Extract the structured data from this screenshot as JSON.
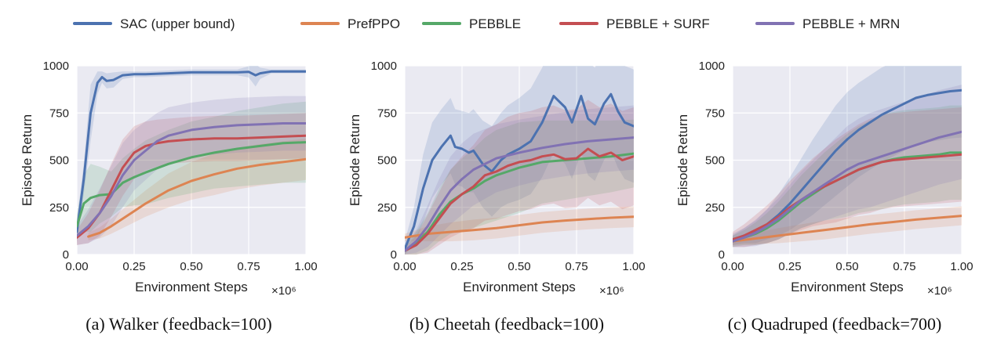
{
  "legend": [
    {
      "name": "SAC (upper bound)",
      "color": "#4c72b0"
    },
    {
      "name": "PrefPPO",
      "color": "#dd8452"
    },
    {
      "name": "PEBBLE",
      "color": "#55a868"
    },
    {
      "name": "PEBBLE + SURF",
      "color": "#c44e52"
    },
    {
      "name": "PEBBLE + MRN",
      "color": "#8172b3"
    }
  ],
  "chart_data": [
    {
      "type": "line",
      "title": "",
      "caption": "(a) Walker (feedback=100)",
      "xlabel": "Environment Steps",
      "ylabel": "Episode Return",
      "x_multiplier": "×10⁶",
      "xlim": [
        0,
        1.0
      ],
      "ylim": [
        0,
        1000
      ],
      "xticks": [
        "0.00",
        "0.25",
        "0.50",
        "0.75",
        "1.00"
      ],
      "yticks": [
        "0",
        "250",
        "500",
        "750",
        "1000"
      ],
      "grid": true,
      "series": [
        {
          "name": "SAC (upper bound)",
          "x": [
            0,
            0.03,
            0.06,
            0.09,
            0.11,
            0.13,
            0.16,
            0.2,
            0.25,
            0.3,
            0.4,
            0.5,
            0.6,
            0.7,
            0.75,
            0.78,
            0.8,
            0.85,
            0.9,
            1.0
          ],
          "y": [
            120,
            400,
            750,
            910,
            940,
            920,
            925,
            950,
            955,
            955,
            960,
            965,
            965,
            965,
            968,
            950,
            960,
            970,
            970,
            970
          ],
          "band": [
            60,
            80,
            150,
            60,
            30,
            40,
            40,
            20,
            15,
            15,
            15,
            15,
            15,
            15,
            30,
            60,
            30,
            10,
            10,
            10
          ]
        },
        {
          "name": "PrefPPO",
          "x": [
            0.05,
            0.1,
            0.15,
            0.2,
            0.25,
            0.3,
            0.4,
            0.5,
            0.6,
            0.7,
            0.8,
            0.9,
            1.0
          ],
          "y": [
            95,
            115,
            150,
            190,
            230,
            270,
            340,
            390,
            425,
            455,
            475,
            490,
            505
          ],
          "band": [
            20,
            30,
            40,
            50,
            60,
            70,
            90,
            100,
            110,
            110,
            110,
            110,
            110
          ]
        },
        {
          "name": "PEBBLE",
          "x": [
            0,
            0.03,
            0.06,
            0.1,
            0.15,
            0.2,
            0.25,
            0.3,
            0.4,
            0.5,
            0.6,
            0.7,
            0.8,
            0.9,
            1.0
          ],
          "y": [
            150,
            270,
            300,
            315,
            320,
            380,
            410,
            435,
            480,
            515,
            540,
            560,
            575,
            590,
            595
          ],
          "band": [
            60,
            150,
            180,
            150,
            120,
            130,
            150,
            170,
            180,
            190,
            190,
            200,
            205,
            210,
            215
          ]
        },
        {
          "name": "PEBBLE + SURF",
          "x": [
            0,
            0.05,
            0.1,
            0.15,
            0.2,
            0.25,
            0.3,
            0.35,
            0.4,
            0.5,
            0.6,
            0.7,
            0.8,
            0.9,
            1.0
          ],
          "y": [
            90,
            140,
            220,
            340,
            460,
            540,
            575,
            590,
            600,
            610,
            615,
            615,
            620,
            625,
            630
          ],
          "band": [
            40,
            80,
            120,
            140,
            150,
            140,
            130,
            125,
            120,
            120,
            120,
            120,
            120,
            120,
            120
          ]
        },
        {
          "name": "PEBBLE + MRN",
          "x": [
            0,
            0.05,
            0.1,
            0.15,
            0.2,
            0.25,
            0.3,
            0.35,
            0.4,
            0.5,
            0.6,
            0.7,
            0.8,
            0.9,
            1.0
          ],
          "y": [
            100,
            150,
            220,
            310,
            420,
            500,
            550,
            600,
            630,
            660,
            675,
            685,
            690,
            695,
            695
          ],
          "band": [
            50,
            90,
            130,
            160,
            170,
            160,
            155,
            150,
            150,
            145,
            145,
            145,
            145,
            145,
            145
          ]
        }
      ]
    },
    {
      "type": "line",
      "title": "",
      "caption": "(b) Cheetah (feedback=100)",
      "xlabel": "Environment Steps",
      "ylabel": "Episode Return",
      "x_multiplier": "×10⁶",
      "xlim": [
        0,
        1.0
      ],
      "ylim": [
        0,
        1000
      ],
      "xticks": [
        "0.00",
        "0.25",
        "0.50",
        "0.75",
        "1.00"
      ],
      "yticks": [
        "0",
        "250",
        "500",
        "750",
        "1000"
      ],
      "grid": true,
      "series": [
        {
          "name": "SAC (upper bound)",
          "x": [
            0,
            0.04,
            0.08,
            0.12,
            0.16,
            0.2,
            0.22,
            0.25,
            0.28,
            0.3,
            0.34,
            0.38,
            0.42,
            0.45,
            0.5,
            0.55,
            0.6,
            0.65,
            0.7,
            0.73,
            0.77,
            0.8,
            0.83,
            0.87,
            0.9,
            0.93,
            0.96,
            1.0
          ],
          "y": [
            30,
            150,
            350,
            500,
            570,
            630,
            570,
            560,
            540,
            550,
            480,
            440,
            500,
            530,
            560,
            600,
            700,
            840,
            780,
            700,
            840,
            720,
            690,
            800,
            850,
            760,
            700,
            680
          ],
          "band": [
            40,
            100,
            180,
            200,
            200,
            200,
            200,
            200,
            210,
            220,
            230,
            240,
            250,
            260,
            270,
            280,
            290,
            300,
            300,
            300,
            300,
            300,
            300,
            300,
            300,
            300,
            300,
            300
          ]
        },
        {
          "name": "PrefPPO",
          "x": [
            0,
            0.05,
            0.1,
            0.2,
            0.3,
            0.4,
            0.5,
            0.6,
            0.7,
            0.8,
            0.9,
            1.0
          ],
          "y": [
            90,
            100,
            110,
            120,
            130,
            140,
            155,
            170,
            180,
            188,
            195,
            200
          ],
          "band": [
            20,
            30,
            40,
            50,
            55,
            55,
            55,
            55,
            55,
            55,
            55,
            55
          ]
        },
        {
          "name": "PEBBLE",
          "x": [
            0,
            0.05,
            0.1,
            0.15,
            0.2,
            0.25,
            0.3,
            0.35,
            0.4,
            0.45,
            0.5,
            0.55,
            0.6,
            0.7,
            0.8,
            0.9,
            1.0
          ],
          "y": [
            20,
            60,
            120,
            210,
            280,
            320,
            350,
            390,
            420,
            440,
            460,
            475,
            490,
            500,
            510,
            520,
            535
          ],
          "band": [
            20,
            60,
            100,
            140,
            170,
            190,
            210,
            230,
            240,
            240,
            240,
            230,
            220,
            210,
            200,
            190,
            180
          ]
        },
        {
          "name": "PEBBLE + SURF",
          "x": [
            0,
            0.05,
            0.1,
            0.15,
            0.2,
            0.25,
            0.3,
            0.35,
            0.4,
            0.45,
            0.5,
            0.55,
            0.6,
            0.65,
            0.7,
            0.75,
            0.8,
            0.85,
            0.9,
            0.95,
            1.0
          ],
          "y": [
            20,
            50,
            110,
            190,
            270,
            320,
            360,
            420,
            440,
            470,
            490,
            500,
            520,
            530,
            505,
            510,
            560,
            520,
            540,
            500,
            520
          ],
          "band": [
            20,
            50,
            100,
            140,
            180,
            200,
            220,
            240,
            250,
            260,
            260,
            260,
            260,
            260,
            260,
            260,
            260,
            260,
            260,
            260,
            260
          ]
        },
        {
          "name": "PEBBLE + MRN",
          "x": [
            0,
            0.05,
            0.1,
            0.15,
            0.2,
            0.25,
            0.3,
            0.35,
            0.4,
            0.5,
            0.6,
            0.7,
            0.8,
            0.9,
            1.0
          ],
          "y": [
            20,
            70,
            150,
            250,
            340,
            400,
            450,
            480,
            510,
            540,
            565,
            585,
            600,
            610,
            620
          ],
          "band": [
            20,
            60,
            110,
            150,
            180,
            190,
            190,
            185,
            180,
            175,
            170,
            170,
            170,
            170,
            170
          ]
        }
      ]
    },
    {
      "type": "line",
      "title": "",
      "caption": "(c) Quadruped (feedback=700)",
      "xlabel": "Environment Steps",
      "ylabel": "Episode Return",
      "x_multiplier": "×10⁶",
      "xlim": [
        0,
        1.0
      ],
      "ylim": [
        0,
        1000
      ],
      "xticks": [
        "0.00",
        "0.25",
        "0.50",
        "0.75",
        "1.00"
      ],
      "yticks": [
        "0",
        "250",
        "500",
        "750",
        "1000"
      ],
      "grid": true,
      "series": [
        {
          "name": "SAC (upper bound)",
          "x": [
            0,
            0.05,
            0.1,
            0.15,
            0.2,
            0.25,
            0.3,
            0.35,
            0.4,
            0.45,
            0.5,
            0.55,
            0.6,
            0.65,
            0.7,
            0.75,
            0.8,
            0.85,
            0.9,
            0.95,
            1.0
          ],
          "y": [
            80,
            100,
            120,
            160,
            210,
            270,
            340,
            410,
            480,
            550,
            610,
            660,
            700,
            740,
            770,
            800,
            830,
            845,
            855,
            865,
            870
          ],
          "band": [
            30,
            40,
            60,
            80,
            110,
            140,
            170,
            200,
            220,
            240,
            250,
            250,
            250,
            250,
            250,
            250,
            250,
            250,
            250,
            250,
            250
          ]
        },
        {
          "name": "PrefPPO",
          "x": [
            0,
            0.1,
            0.2,
            0.3,
            0.4,
            0.5,
            0.6,
            0.7,
            0.8,
            0.9,
            1.0
          ],
          "y": [
            70,
            85,
            100,
            115,
            130,
            145,
            160,
            172,
            185,
            195,
            205
          ],
          "band": [
            20,
            30,
            40,
            45,
            50,
            50,
            50,
            50,
            50,
            50,
            50
          ]
        },
        {
          "name": "PEBBLE",
          "x": [
            0,
            0.05,
            0.1,
            0.15,
            0.2,
            0.25,
            0.3,
            0.35,
            0.4,
            0.45,
            0.5,
            0.55,
            0.6,
            0.65,
            0.7,
            0.75,
            0.8,
            0.85,
            0.9,
            0.95,
            1.0
          ],
          "y": [
            70,
            90,
            110,
            140,
            180,
            230,
            280,
            320,
            360,
            390,
            420,
            450,
            470,
            490,
            505,
            515,
            520,
            525,
            530,
            540,
            540
          ],
          "band": [
            30,
            40,
            60,
            80,
            100,
            120,
            140,
            160,
            180,
            200,
            220,
            230,
            240,
            250,
            250,
            250,
            250,
            250,
            250,
            250,
            250
          ]
        },
        {
          "name": "PEBBLE + SURF",
          "x": [
            0,
            0.05,
            0.1,
            0.15,
            0.2,
            0.25,
            0.3,
            0.35,
            0.4,
            0.45,
            0.5,
            0.55,
            0.6,
            0.65,
            0.7,
            0.75,
            0.8,
            0.85,
            0.9,
            0.95,
            1.0
          ],
          "y": [
            80,
            100,
            130,
            160,
            200,
            250,
            290,
            330,
            360,
            390,
            420,
            450,
            470,
            490,
            500,
            505,
            510,
            515,
            520,
            525,
            530
          ],
          "band": [
            40,
            60,
            80,
            100,
            120,
            140,
            160,
            180,
            200,
            220,
            230,
            240,
            250,
            250,
            250,
            250,
            250,
            250,
            250,
            250,
            250
          ]
        },
        {
          "name": "PEBBLE + MRN",
          "x": [
            0,
            0.05,
            0.1,
            0.15,
            0.2,
            0.25,
            0.3,
            0.35,
            0.4,
            0.45,
            0.5,
            0.55,
            0.6,
            0.65,
            0.7,
            0.75,
            0.8,
            0.85,
            0.9,
            0.95,
            1.0
          ],
          "y": [
            70,
            90,
            115,
            150,
            190,
            240,
            290,
            330,
            370,
            410,
            450,
            480,
            500,
            520,
            540,
            560,
            580,
            600,
            620,
            635,
            650
          ],
          "band": [
            30,
            50,
            70,
            90,
            110,
            130,
            150,
            170,
            190,
            210,
            230,
            240,
            250,
            250,
            250,
            250,
            250,
            250,
            250,
            250,
            250
          ]
        }
      ]
    }
  ]
}
